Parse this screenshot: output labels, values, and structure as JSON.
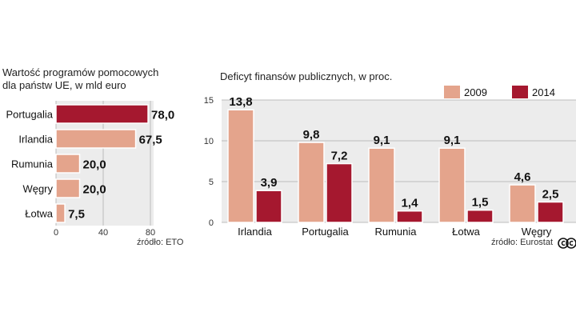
{
  "chart_data": [
    {
      "type": "bar",
      "orientation": "horizontal",
      "title": "Wartość programów pomocowych dla państw UE, w mld euro",
      "title_lines": [
        "Wartość programów pomocowych",
        "dla państw UE, w mld euro"
      ],
      "categories": [
        "Portugalia",
        "Irlandia",
        "Rumunia",
        "Węgry",
        "Łotwa"
      ],
      "values": [
        78.0,
        67.5,
        20.0,
        20.0,
        7.5
      ],
      "value_labels": [
        "78,0",
        "67,5",
        "20,0",
        "20,0",
        "7,5"
      ],
      "highlight": [
        true,
        false,
        false,
        false,
        false
      ],
      "xlim": [
        0,
        80
      ],
      "xticks": [
        0,
        40,
        80
      ],
      "source": "źródło: ETO",
      "colors": {
        "normal": "#e4a48c",
        "highlight": "#a5182f"
      }
    },
    {
      "type": "bar",
      "orientation": "vertical",
      "title": "Deficyt finansów publicznych, w proc.",
      "categories": [
        "Irlandia",
        "Portugalia",
        "Rumunia",
        "Łotwa",
        "Węgry"
      ],
      "series": [
        {
          "name": "2009",
          "values": [
            13.8,
            9.8,
            9.1,
            9.1,
            4.6
          ],
          "labels": [
            "13,8",
            "9,8",
            "9,1",
            "9,1",
            "4,6"
          ],
          "color": "#e4a48c"
        },
        {
          "name": "2014",
          "values": [
            3.9,
            7.2,
            1.4,
            1.5,
            2.5
          ],
          "labels": [
            "3,9",
            "7,2",
            "1,4",
            "1,5",
            "2,5"
          ],
          "color": "#a5182f"
        }
      ],
      "ylim": [
        0,
        15
      ],
      "yticks": [
        0,
        5,
        10,
        15
      ],
      "legend_position": "top-right",
      "source": "źródło: Eurostat"
    }
  ],
  "branding": {
    "license_mark": "cc"
  },
  "colors": {
    "panel_bg": "#ececec",
    "grid": "#bcbcbc",
    "bar_border": "#ffffff"
  }
}
